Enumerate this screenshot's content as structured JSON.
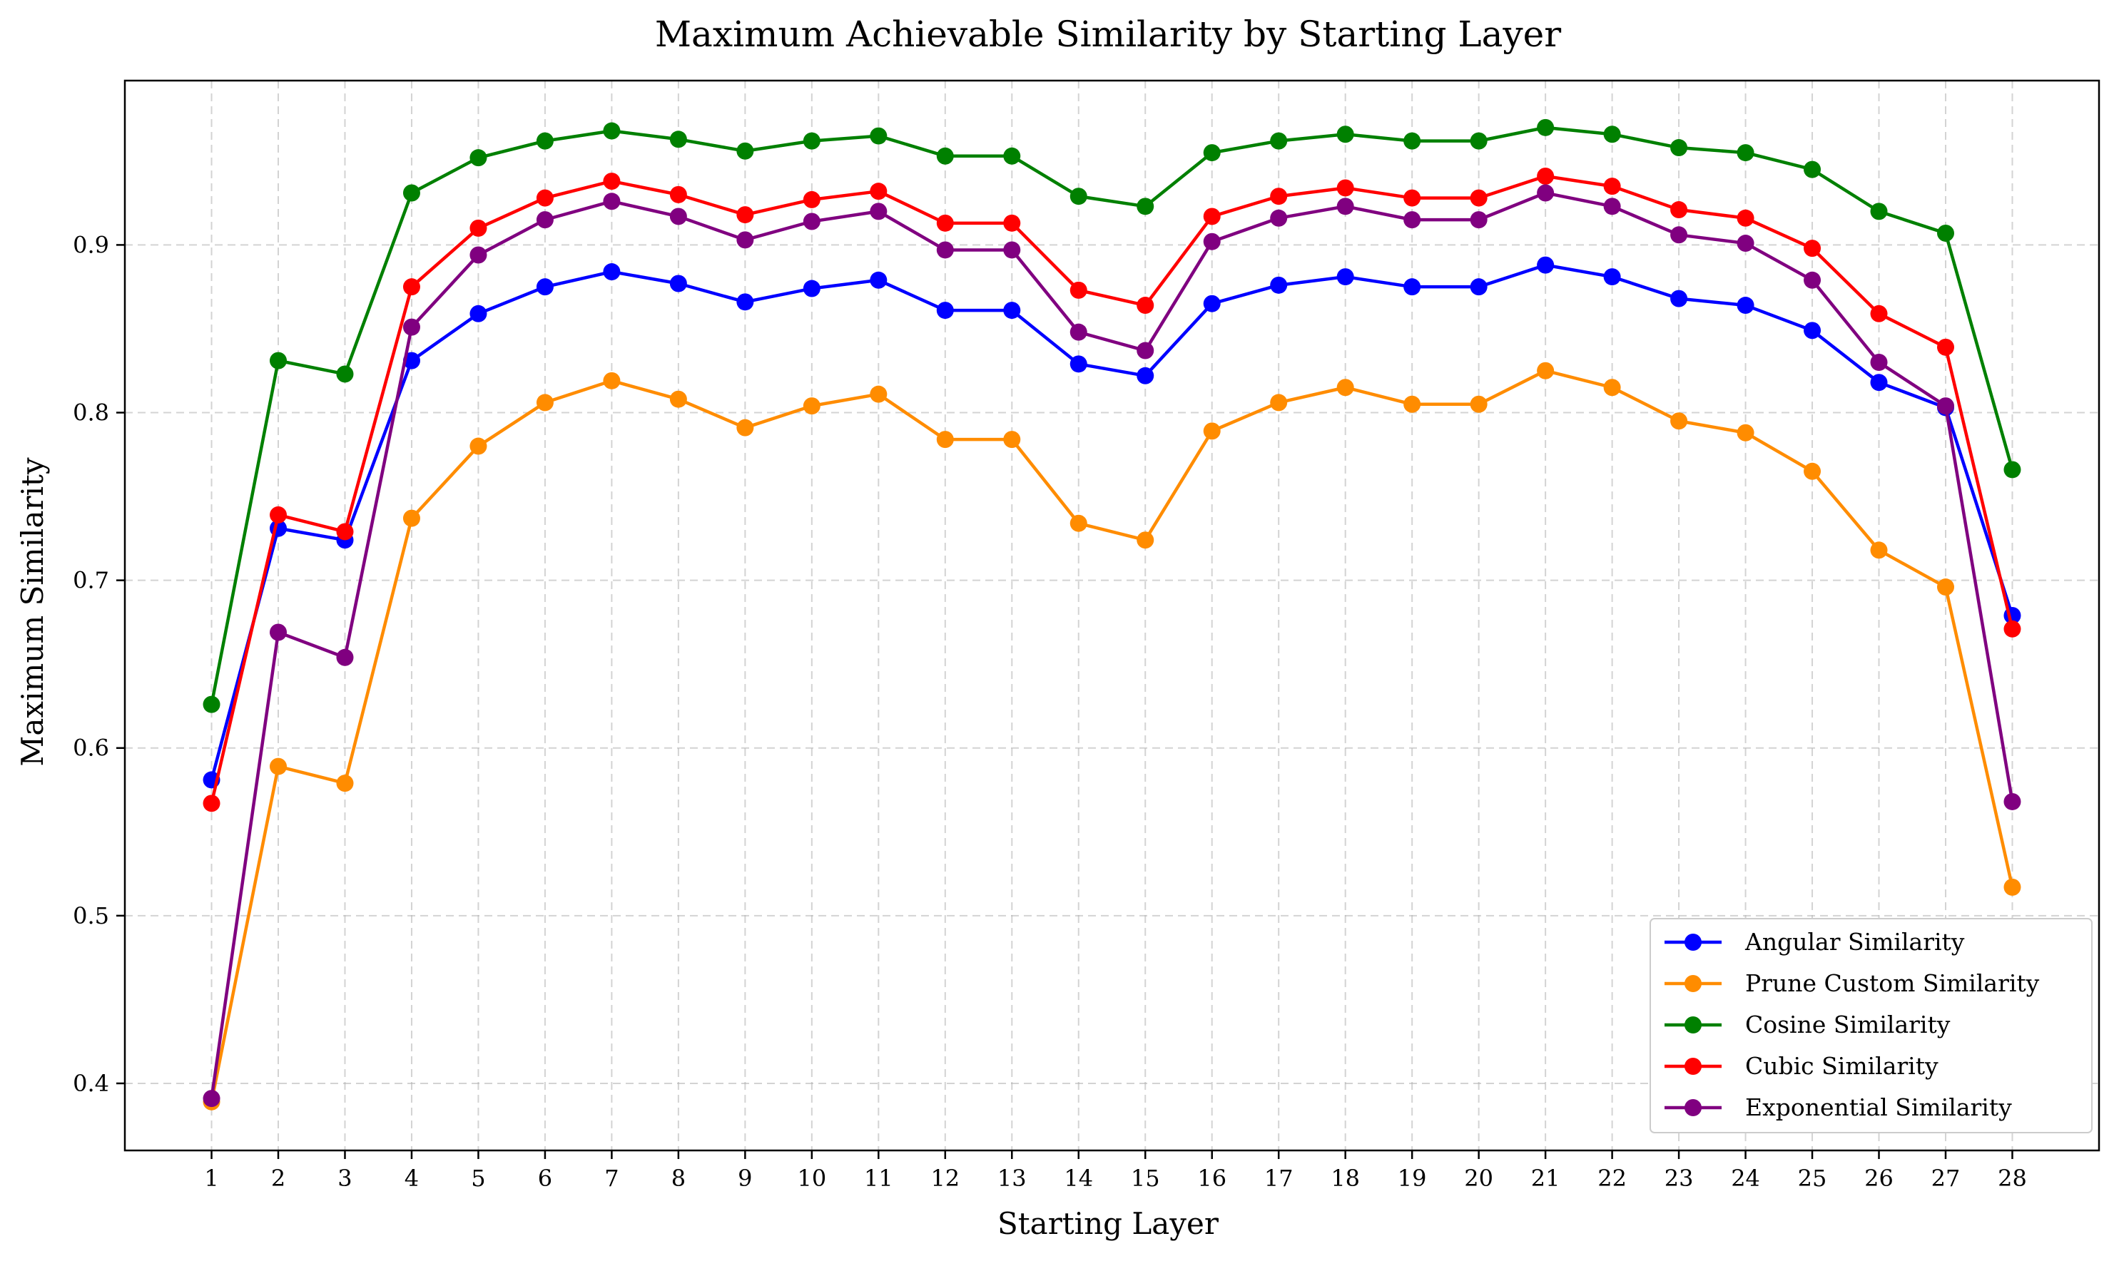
{
  "chart_data": {
    "type": "line",
    "title": "Maximum Achievable Similarity by Starting Layer",
    "xlabel": "Starting Layer",
    "ylabel": "Maximum Similarity",
    "x": [
      1,
      2,
      3,
      4,
      5,
      6,
      7,
      8,
      9,
      10,
      11,
      12,
      13,
      14,
      15,
      16,
      17,
      18,
      19,
      20,
      21,
      22,
      23,
      24,
      25,
      26,
      27,
      28
    ],
    "xlim": [
      -0.3,
      29.3
    ],
    "ylim": [
      0.36,
      0.998
    ],
    "yticks": [
      0.4,
      0.5,
      0.6,
      0.7,
      0.8,
      0.9
    ],
    "ytick_labels": [
      "0.4",
      "0.5",
      "0.6",
      "0.7",
      "0.8",
      "0.9"
    ],
    "grid": true,
    "legend_position": "lower-right",
    "series": [
      {
        "name": "Angular Similarity",
        "color": "#0000ff",
        "values": [
          0.581,
          0.731,
          0.724,
          0.831,
          0.859,
          0.875,
          0.884,
          0.877,
          0.866,
          0.874,
          0.879,
          0.861,
          0.861,
          0.829,
          0.822,
          0.865,
          0.876,
          0.881,
          0.875,
          0.875,
          0.888,
          0.881,
          0.868,
          0.864,
          0.849,
          0.818,
          0.803,
          0.679
        ]
      },
      {
        "name": "Prune Custom Similarity",
        "color": "#ff8c00",
        "values": [
          0.389,
          0.589,
          0.579,
          0.737,
          0.78,
          0.806,
          0.819,
          0.808,
          0.791,
          0.804,
          0.811,
          0.784,
          0.784,
          0.734,
          0.724,
          0.789,
          0.806,
          0.815,
          0.805,
          0.805,
          0.825,
          0.815,
          0.795,
          0.788,
          0.765,
          0.718,
          0.696,
          0.517
        ]
      },
      {
        "name": "Cosine Similarity",
        "color": "#008000",
        "values": [
          0.626,
          0.831,
          0.823,
          0.931,
          0.952,
          0.962,
          0.968,
          0.963,
          0.956,
          0.962,
          0.965,
          0.953,
          0.953,
          0.929,
          0.923,
          0.955,
          0.962,
          0.966,
          0.962,
          0.962,
          0.97,
          0.966,
          0.958,
          0.955,
          0.945,
          0.92,
          0.907,
          0.766
        ]
      },
      {
        "name": "Cubic Similarity",
        "color": "#ff0000",
        "values": [
          0.567,
          0.739,
          0.729,
          0.875,
          0.91,
          0.928,
          0.938,
          0.93,
          0.918,
          0.927,
          0.932,
          0.913,
          0.913,
          0.873,
          0.864,
          0.917,
          0.929,
          0.934,
          0.928,
          0.928,
          0.941,
          0.935,
          0.921,
          0.916,
          0.898,
          0.859,
          0.839,
          0.671
        ]
      },
      {
        "name": "Exponential Similarity",
        "color": "#800080",
        "values": [
          0.391,
          0.669,
          0.654,
          0.851,
          0.894,
          0.915,
          0.926,
          0.917,
          0.903,
          0.914,
          0.92,
          0.897,
          0.897,
          0.848,
          0.837,
          0.902,
          0.916,
          0.923,
          0.915,
          0.915,
          0.931,
          0.923,
          0.906,
          0.901,
          0.879,
          0.83,
          0.804,
          0.568
        ]
      }
    ]
  }
}
